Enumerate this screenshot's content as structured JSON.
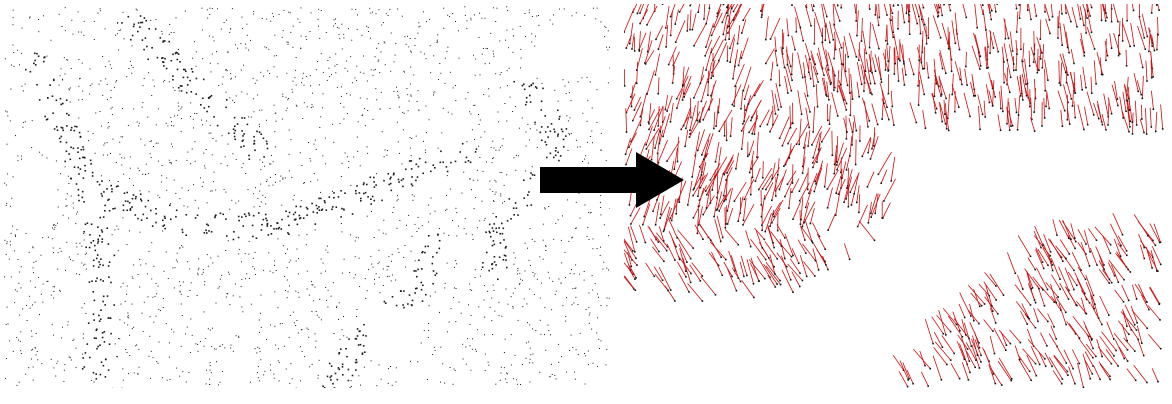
{
  "figure": {
    "panels": [
      {
        "id": "point-cloud",
        "description_icon": "point-cloud-icon"
      },
      {
        "id": "normals",
        "description_icon": "normal-vectors-icon"
      }
    ],
    "arrow_icon": "right-arrow-icon"
  },
  "colors": {
    "background": "#ffffff",
    "points": "#1a1a1a",
    "normals": "#cc1111",
    "normal_base": "#111111",
    "arrow": "#000000"
  }
}
